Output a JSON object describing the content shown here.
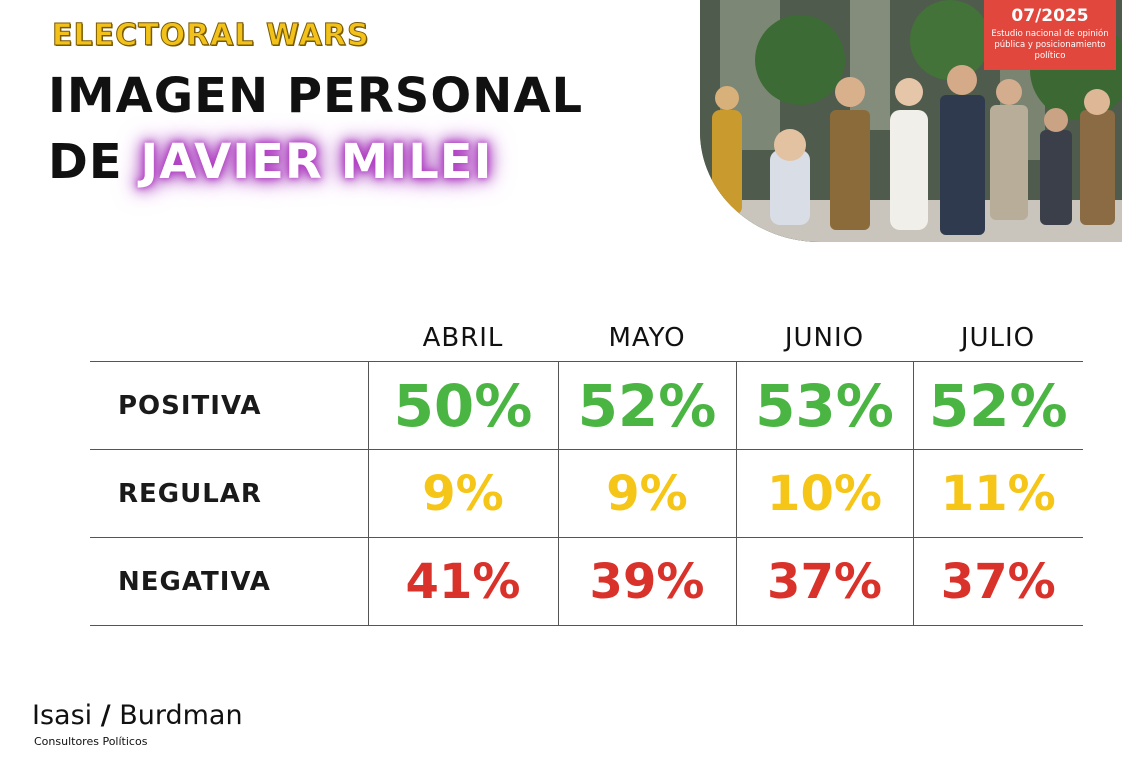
{
  "header": {
    "brand": "ELECTORAL WARS",
    "title_line1": "IMAGEN PERSONAL",
    "title_prefix": "DE",
    "title_name": "JAVIER MILEI"
  },
  "badge": {
    "date": "07/2025",
    "subtitle": "Estudio nacional de opinión pública y posicionamiento político"
  },
  "chart_data": {
    "type": "table",
    "columns": [
      "ABRIL",
      "MAYO",
      "JUNIO",
      "JULIO"
    ],
    "rows": [
      {
        "label": "POSITIVA",
        "values": [
          "50%",
          "52%",
          "53%",
          "52%"
        ],
        "color": "#4bb543"
      },
      {
        "label": "REGULAR",
        "values": [
          "9%",
          "9%",
          "10%",
          "11%"
        ],
        "color": "#f5c518"
      },
      {
        "label": "NEGATIVA",
        "values": [
          "41%",
          "39%",
          "37%",
          "37%"
        ],
        "color": "#d9322b"
      }
    ]
  },
  "footer": {
    "logo_left": "Isasi",
    "logo_slash": "/",
    "logo_right": "Burdman",
    "logo_sub": "Consultores Políticos"
  },
  "photo": {
    "icon": "costume-group-photo"
  }
}
